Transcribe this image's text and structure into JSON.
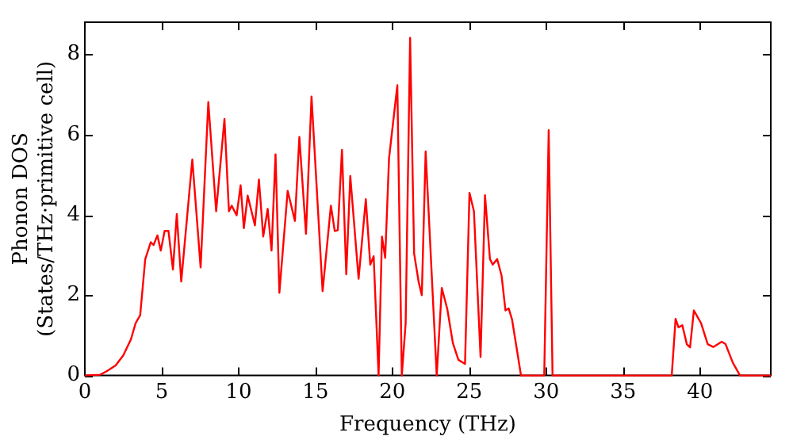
{
  "chart_data": {
    "type": "line",
    "xlabel": "Frequency (THz)",
    "ylabel": "Phonon DOS\n(States/THz·primitive cell)",
    "xlim": [
      0,
      44.6
    ],
    "xticks": [
      0,
      5,
      10,
      15,
      20,
      25,
      30,
      35,
      40
    ],
    "ylim": [
      0,
      8.8
    ],
    "yticks": [
      0,
      2,
      4,
      6,
      8
    ],
    "grid": false,
    "legend": false,
    "marker": "none",
    "line_style": "solid",
    "series": [
      {
        "color": "#ff0000",
        "x": [
          0,
          1,
          1.4,
          2,
          2.5,
          3,
          3.3,
          3.6,
          3.93,
          4.29,
          4.47,
          4.72,
          4.94,
          5.19,
          5.44,
          5.73,
          5.98,
          6.27,
          6.99,
          7.53,
          8.03,
          8.54,
          9.08,
          9.37,
          9.55,
          9.87,
          10.13,
          10.34,
          10.59,
          11.06,
          11.32,
          11.6,
          11.89,
          12.14,
          12.4,
          12.65,
          13.19,
          13.66,
          13.95,
          14.38,
          14.74,
          15.46,
          16.0,
          16.25,
          16.45,
          16.72,
          17.0,
          17.26,
          17.8,
          18.27,
          18.56,
          18.78,
          19.1,
          19.32,
          19.53,
          19.78,
          20.32,
          20.61,
          20.86,
          21.15,
          21.41,
          21.7,
          21.91,
          22.16,
          22.88,
          23.21,
          23.57,
          23.93,
          24.29,
          24.72,
          25.01,
          25.3,
          25.73,
          26.02,
          26.34,
          26.52,
          26.81,
          27.1,
          27.35,
          27.56,
          27.78,
          28.14,
          28.36,
          29.87,
          30.16,
          30.41,
          38.16,
          38.41,
          38.6,
          38.85,
          39.14,
          39.35,
          39.6,
          40.07,
          40.5,
          40.86,
          41.41,
          41.66,
          42.13,
          42.6,
          44.6
        ],
        "values": [
          0,
          0.02,
          0.1,
          0.25,
          0.5,
          0.9,
          1.3,
          1.5,
          2.9,
          3.32,
          3.25,
          3.49,
          3.11,
          3.6,
          3.6,
          2.64,
          4.02,
          2.34,
          5.38,
          2.69,
          6.81,
          4.09,
          6.39,
          4.09,
          4.23,
          3.99,
          4.74,
          3.67,
          4.48,
          3.74,
          4.88,
          3.46,
          4.15,
          3.11,
          5.51,
          2.06,
          4.6,
          3.85,
          5.94,
          3.53,
          6.95,
          2.1,
          4.23,
          3.6,
          3.62,
          5.62,
          2.52,
          4.97,
          2.41,
          4.39,
          2.76,
          2.97,
          0,
          3.46,
          2.93,
          5.41,
          7.23,
          0,
          1.3,
          8.41,
          3.04,
          2.34,
          2.0,
          5.58,
          0,
          2.18,
          1.65,
          0.81,
          0.39,
          0.29,
          4.55,
          4.09,
          0.46,
          4.49,
          2.9,
          2.76,
          2.9,
          2.48,
          1.62,
          1.67,
          1.39,
          0.53,
          0,
          0,
          6.11,
          0,
          0,
          1.41,
          1.2,
          1.25,
          0.78,
          0.7,
          1.62,
          1.3,
          0.78,
          0.71,
          0.84,
          0.78,
          0.32,
          0,
          0
        ]
      }
    ]
  }
}
